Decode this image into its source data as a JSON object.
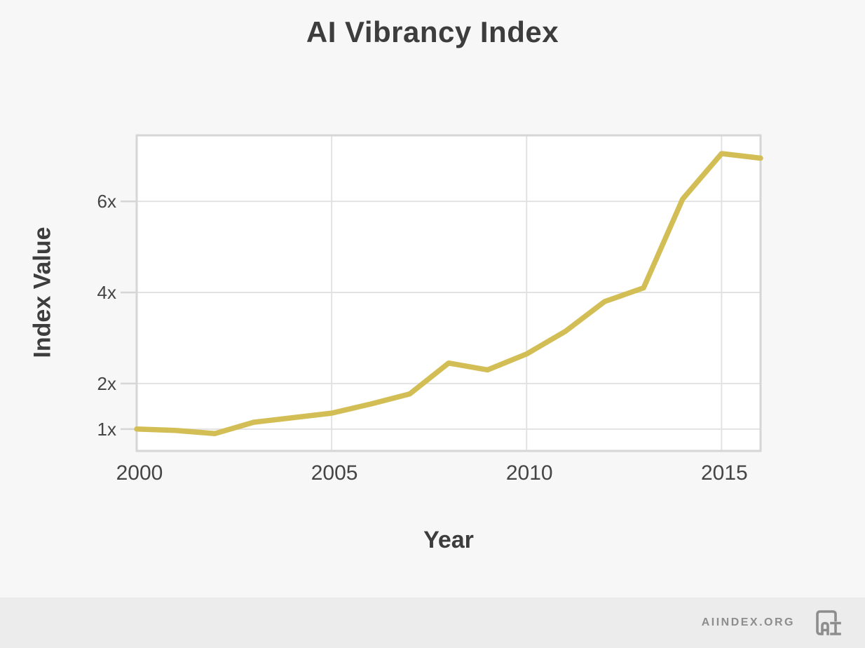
{
  "page": {
    "title": "AI Vibrancy Index"
  },
  "chart_data": {
    "type": "line",
    "title": "AI Vibrancy Index",
    "xlabel": "Year",
    "ylabel": "Index Value",
    "x": [
      2000,
      2001,
      2002,
      2003,
      2004,
      2005,
      2006,
      2007,
      2008,
      2009,
      2010,
      2011,
      2012,
      2013,
      2014,
      2015,
      2016
    ],
    "series": [
      {
        "name": "AI Vibrancy Index",
        "color": "#d2be55",
        "values": [
          1.0,
          0.97,
          0.9,
          1.15,
          1.25,
          1.35,
          1.55,
          1.77,
          2.45,
          2.3,
          2.65,
          3.15,
          3.8,
          4.1,
          6.05,
          7.05,
          6.95
        ]
      }
    ],
    "x_ticks": [
      {
        "value": 2000,
        "label": "2000"
      },
      {
        "value": 2005,
        "label": "2005"
      },
      {
        "value": 2010,
        "label": "2010"
      },
      {
        "value": 2015,
        "label": "2015"
      }
    ],
    "y_ticks": [
      {
        "value": 1,
        "label": "1x"
      },
      {
        "value": 2,
        "label": "2x"
      },
      {
        "value": 4,
        "label": "4x"
      },
      {
        "value": 6,
        "label": "6x"
      }
    ],
    "xlim": [
      2000,
      2016
    ],
    "ylim": [
      0.52,
      7.45
    ],
    "grid": true,
    "legend": false,
    "markers": false
  },
  "footer": {
    "site_label": "AIINDEX.ORG",
    "logo_text": "AI"
  },
  "colors": {
    "background": "#f7f7f7",
    "plot_background": "#ffffff",
    "gridline": "#e2e2e2",
    "axis_border": "#d6d6d6",
    "title_text": "#3d3d3d",
    "tick_text": "#454545",
    "footer_background": "#ececec",
    "footer_text": "#8d8d8d"
  }
}
